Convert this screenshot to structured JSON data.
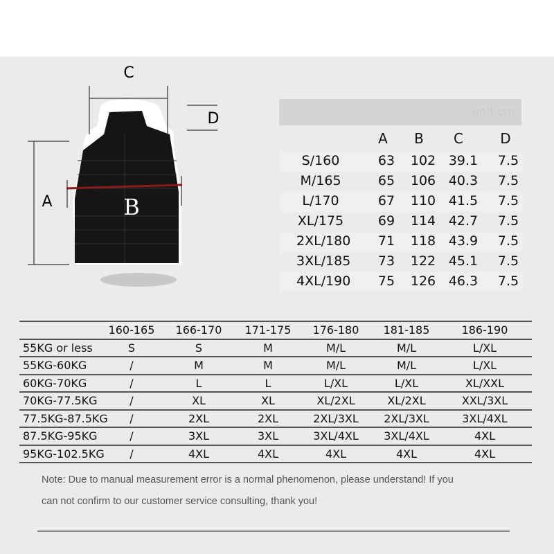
{
  "diagram": {
    "labels": {
      "a": "A",
      "b": "B",
      "c": "C",
      "d": "D"
    },
    "measure_line_color": "#8b1a1a"
  },
  "measurements": {
    "unit": "unit:cm",
    "columns": [
      "A",
      "B",
      "C",
      "D"
    ],
    "rows": [
      {
        "size": "S/160",
        "values": [
          "63",
          "102",
          "39.1",
          "7.5"
        ]
      },
      {
        "size": "M/165",
        "values": [
          "65",
          "106",
          "40.3",
          "7.5"
        ]
      },
      {
        "size": "L/170",
        "values": [
          "67",
          "110",
          "41.5",
          "7.5"
        ]
      },
      {
        "size": "XL/175",
        "values": [
          "69",
          "114",
          "42.7",
          "7.5"
        ]
      },
      {
        "size": "2XL/180",
        "values": [
          "71",
          "118",
          "43.9",
          "7.5"
        ]
      },
      {
        "size": "3XL/185",
        "values": [
          "73",
          "122",
          "45.1",
          "7.5"
        ]
      },
      {
        "size": "4XL/190",
        "values": [
          "75",
          "126",
          "46.3",
          "7.5"
        ]
      }
    ]
  },
  "size_guide": {
    "heights": [
      "160-165",
      "166-170",
      "171-175",
      "176-180",
      "181-185",
      "186-190"
    ],
    "rows": [
      {
        "weight": "55KG or less",
        "sizes": [
          "S",
          "S",
          "M",
          "M/L",
          "M/L",
          "L/XL"
        ]
      },
      {
        "weight": "55KG-60KG",
        "sizes": [
          "/",
          "M",
          "M",
          "M/L",
          "M/L",
          "L/XL"
        ]
      },
      {
        "weight": "60KG-70KG",
        "sizes": [
          "/",
          "L",
          "L",
          "L/XL",
          "L/XL",
          "XL/XXL"
        ]
      },
      {
        "weight": "70KG-77.5KG",
        "sizes": [
          "/",
          "XL",
          "XL",
          "XL/2XL",
          "XL/2XL",
          "XXL/3XL"
        ]
      },
      {
        "weight": "77.5KG-87.5KG",
        "sizes": [
          "/",
          "2XL",
          "2XL",
          "2XL/3XL",
          "2XL/3XL",
          "3XL/4XL"
        ]
      },
      {
        "weight": "87.5KG-95KG",
        "sizes": [
          "/",
          "3XL",
          "3XL",
          "3XL/4XL",
          "3XL/4XL",
          "4XL"
        ]
      },
      {
        "weight": "95KG-102.5KG",
        "sizes": [
          "/",
          "4XL",
          "4XL",
          "4XL",
          "4XL",
          "4XL"
        ]
      }
    ]
  },
  "note": {
    "line1": "Note: Due to manual measurement error is a normal phenomenon, please understand! If you",
    "line2": "can not confirm to our customer service consulting, thank you!"
  }
}
